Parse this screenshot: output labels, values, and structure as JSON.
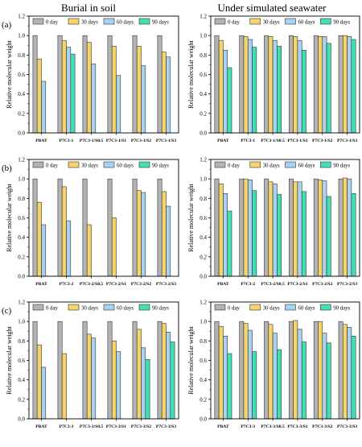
{
  "column_titles": [
    "Burial in soil",
    "Under simulated seawater"
  ],
  "row_labels": [
    "(a)",
    "(b)",
    "(c)"
  ],
  "legend": [
    {
      "label": "0 day",
      "color": "#b3b3b3"
    },
    {
      "label": "30 days",
      "color": "#f6d46a"
    },
    {
      "label": "60 days",
      "color": "#a9d2ee"
    },
    {
      "label": "90 days",
      "color": "#40e0b4"
    }
  ],
  "chart_data": [
    {
      "type": "bar",
      "row": "(a)",
      "column": "Burial in soil",
      "ylabel": "Relative molecular weight",
      "ylim": [
        0.0,
        1.2
      ],
      "yticks": [
        "0.0",
        "0.2",
        "0.4",
        "0.6",
        "0.8",
        "1.0",
        "1.2"
      ],
      "categories": [
        "PBAT",
        "P7C3-1",
        "P7C3-1/S0.5",
        "P7C3-1/S1",
        "P7C3-1/S2",
        "P7C3-1/S3"
      ],
      "series": [
        {
          "name": "0 day",
          "values": [
            1.0,
            1.0,
            1.0,
            1.0,
            1.0,
            1.0
          ]
        },
        {
          "name": "30 days",
          "values": [
            0.76,
            0.95,
            0.93,
            0.89,
            0.89,
            0.83
          ]
        },
        {
          "name": "60 days",
          "values": [
            0.53,
            0.88,
            0.71,
            0.59,
            0.69,
            0.78
          ]
        },
        {
          "name": "90 days",
          "values": [
            null,
            0.81,
            null,
            null,
            null,
            null
          ]
        }
      ]
    },
    {
      "type": "bar",
      "row": "(a)",
      "column": "Under simulated seawater",
      "ylabel": "Relative molecular weight",
      "ylim": [
        0.0,
        1.2
      ],
      "yticks": [
        "0.0",
        "0.2",
        "0.4",
        "0.6",
        "0.8",
        "1.0",
        "1.2"
      ],
      "categories": [
        "PBAT",
        "P7C3-1",
        "P7C3-1/S0.5",
        "P7C3-1/S1",
        "P7C3-1/S2",
        "P7C3-1/S3"
      ],
      "series": [
        {
          "name": "0 day",
          "values": [
            1.0,
            1.0,
            1.0,
            1.0,
            1.0,
            1.0
          ]
        },
        {
          "name": "30 days",
          "values": [
            0.95,
            0.99,
            0.99,
            0.99,
            0.99,
            1.0
          ]
        },
        {
          "name": "60 days",
          "values": [
            0.85,
            0.96,
            0.95,
            0.95,
            0.99,
            0.99
          ]
        },
        {
          "name": "90 days",
          "values": [
            0.67,
            0.88,
            0.89,
            0.85,
            0.92,
            0.96
          ]
        }
      ]
    },
    {
      "type": "bar",
      "row": "(b)",
      "column": "Burial in soil",
      "ylabel": "Relative molecular weight",
      "ylim": [
        0.0,
        1.2
      ],
      "yticks": [
        "0.0",
        "0.2",
        "0.4",
        "0.6",
        "0.8",
        "1.0",
        "1.2"
      ],
      "categories": [
        "PBAT",
        "P7C3-2",
        "P7C3-2/S0.5",
        "P7C3-2/S1",
        "P7C3-2/S2",
        "P7C3-2/S3"
      ],
      "series": [
        {
          "name": "0 day",
          "values": [
            1.0,
            1.0,
            1.0,
            1.0,
            1.0,
            1.0
          ]
        },
        {
          "name": "30 days",
          "values": [
            0.76,
            0.92,
            0.53,
            0.6,
            0.88,
            0.87
          ]
        },
        {
          "name": "60 days",
          "values": [
            0.53,
            0.57,
            null,
            null,
            0.86,
            0.72
          ]
        },
        {
          "name": "90 days",
          "values": [
            null,
            null,
            null,
            null,
            null,
            null
          ]
        }
      ]
    },
    {
      "type": "bar",
      "row": "(b)",
      "column": "Under simulated seawater",
      "ylabel": "Relative molecular weight",
      "ylim": [
        0.0,
        1.2
      ],
      "yticks": [
        "0.0",
        "0.2",
        "0.4",
        "0.6",
        "0.8",
        "1.0",
        "1.2"
      ],
      "categories": [
        "PBAT",
        "P7C3-2",
        "P7C3-2/S0.5",
        "P7C3-2/S1",
        "P7C3-2/S2",
        "P7C3-2/S3"
      ],
      "series": [
        {
          "name": "0 day",
          "values": [
            1.0,
            1.0,
            1.0,
            1.0,
            1.0,
            1.0
          ]
        },
        {
          "name": "30 days",
          "values": [
            0.95,
            1.0,
            0.97,
            0.97,
            0.99,
            1.01
          ]
        },
        {
          "name": "60 days",
          "values": [
            0.85,
            0.99,
            0.95,
            0.97,
            0.98,
            1.0
          ]
        },
        {
          "name": "90 days",
          "values": [
            0.67,
            0.88,
            0.84,
            0.87,
            0.82,
            0.85
          ]
        }
      ]
    },
    {
      "type": "bar",
      "row": "(c)",
      "column": "Burial in soil",
      "ylabel": "Relative molecular weight",
      "ylim": [
        0.0,
        1.2
      ],
      "yticks": [
        "0.0",
        "0.2",
        "0.4",
        "0.6",
        "0.8",
        "1.0",
        "1.2"
      ],
      "categories": [
        "PBAT",
        "P7C3-3",
        "P7C3-3/S0.5",
        "P7C3-3/S1",
        "P7C3-3/S2",
        "P7C3-3/S3"
      ],
      "series": [
        {
          "name": "0 day",
          "values": [
            1.0,
            1.0,
            1.0,
            1.0,
            1.0,
            1.0
          ]
        },
        {
          "name": "30 days",
          "values": [
            0.76,
            0.67,
            0.87,
            0.8,
            0.92,
            0.98
          ]
        },
        {
          "name": "60 days",
          "values": [
            0.53,
            null,
            0.83,
            0.69,
            0.73,
            0.89
          ]
        },
        {
          "name": "90 days",
          "values": [
            null,
            null,
            null,
            null,
            0.61,
            0.79
          ]
        }
      ]
    },
    {
      "type": "bar",
      "row": "(c)",
      "column": "Under simulated seawater",
      "ylabel": "Relative molecular weight",
      "ylim": [
        0.0,
        1.2
      ],
      "yticks": [
        "0.0",
        "0.2",
        "0.4",
        "0.6",
        "0.8",
        "1.0",
        "1.2"
      ],
      "categories": [
        "PBAT",
        "P7C3-3",
        "P7C3-3/S0.5",
        "P7C3-3/S1",
        "P7C3-3/S2",
        "P7C3-3/S3"
      ],
      "series": [
        {
          "name": "0 day",
          "values": [
            1.0,
            1.0,
            1.0,
            1.0,
            1.0,
            1.0
          ]
        },
        {
          "name": "30 days",
          "values": [
            0.95,
            0.98,
            0.97,
            1.01,
            1.0,
            0.97
          ]
        },
        {
          "name": "60 days",
          "values": [
            0.85,
            0.91,
            0.88,
            0.92,
            0.88,
            0.94
          ]
        },
        {
          "name": "90 days",
          "values": [
            0.67,
            0.69,
            0.71,
            0.79,
            0.78,
            0.85
          ]
        }
      ]
    }
  ]
}
